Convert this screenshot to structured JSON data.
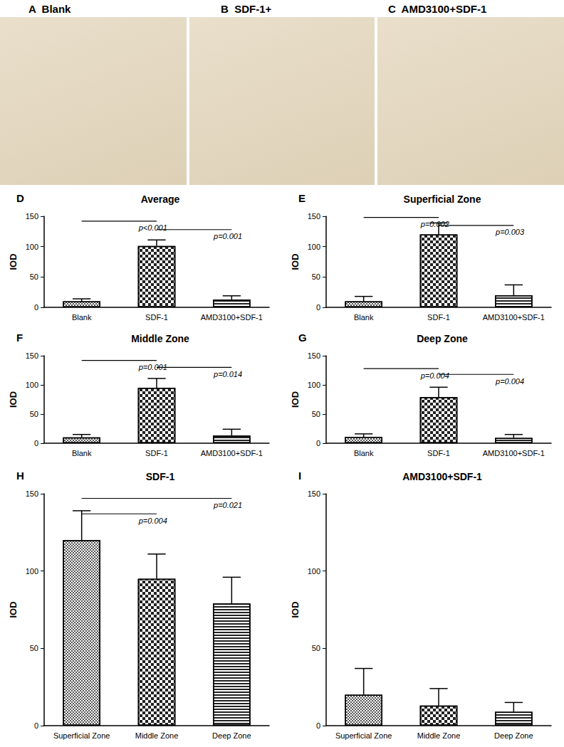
{
  "image_panels": [
    {
      "panel": "A",
      "title": "Blank"
    },
    {
      "panel": "B",
      "title": "SDF-1+"
    },
    {
      "panel": "C",
      "title": "AMD3100+SDF-1"
    }
  ],
  "chart_data": [
    {
      "type": "bar",
      "panel": "D",
      "title": "Average",
      "y_label": "IOD",
      "categories": [
        "Blank",
        "SDF-1",
        "AMD3100+SDF-1"
      ],
      "values": [
        10,
        101,
        13
      ],
      "errors": [
        4,
        10,
        6
      ],
      "color": "#ffffff",
      "ylim": [
        0,
        150
      ],
      "yticks": [
        0,
        50,
        100,
        150
      ],
      "comparisons": [
        {
          "from": "Blank",
          "to": "SDF-1",
          "y": 142,
          "label": "p<0.001"
        },
        {
          "from": "SDF-1",
          "to": "AMD3100+SDF-1",
          "y": 128,
          "label": "p=0.001"
        }
      ]
    },
    {
      "type": "bar",
      "panel": "E",
      "title": "Superficial Zone",
      "y_label": "IOD",
      "categories": [
        "Blank",
        "SDF-1",
        "AMD3100+SDF-1"
      ],
      "values": [
        10,
        120,
        20
      ],
      "errors": [
        8,
        19,
        17
      ],
      "color": "#ffffff",
      "ylim": [
        0,
        150
      ],
      "yticks": [
        0,
        50,
        100,
        150
      ],
      "comparisons": [
        {
          "from": "Blank",
          "to": "SDF-1",
          "y": 148,
          "label": "p=0.002"
        },
        {
          "from": "SDF-1",
          "to": "AMD3100+SDF-1",
          "y": 135,
          "label": "p=0.003"
        }
      ]
    },
    {
      "type": "bar",
      "panel": "F",
      "title": "Middle Zone",
      "y_label": "IOD",
      "categories": [
        "Blank",
        "SDF-1",
        "AMD3100+SDF-1"
      ],
      "values": [
        10,
        95,
        13
      ],
      "errors": [
        5,
        16,
        11
      ],
      "color": "#ffffff",
      "ylim": [
        0,
        150
      ],
      "yticks": [
        0,
        50,
        100,
        150
      ],
      "comparisons": [
        {
          "from": "Blank",
          "to": "SDF-1",
          "y": 142,
          "label": "p=0.001"
        },
        {
          "from": "SDF-1",
          "to": "AMD3100+SDF-1",
          "y": 130,
          "label": "p=0.014"
        }
      ]
    },
    {
      "type": "bar",
      "panel": "G",
      "title": "Deep Zone",
      "y_label": "IOD",
      "categories": [
        "Blank",
        "SDF-1",
        "AMD3100+SDF-1"
      ],
      "values": [
        11,
        79,
        9
      ],
      "errors": [
        5,
        17,
        6
      ],
      "color": "#ffffff",
      "ylim": [
        0,
        150
      ],
      "yticks": [
        0,
        50,
        100,
        150
      ],
      "comparisons": [
        {
          "from": "Blank",
          "to": "SDF-1",
          "y": 128,
          "label": "p=0.004"
        },
        {
          "from": "SDF-1",
          "to": "AMD3100+SDF-1",
          "y": 118,
          "label": "p=0.004"
        }
      ]
    },
    {
      "type": "bar",
      "panel": "H",
      "title": "SDF-1",
      "y_label": "IOD",
      "categories": [
        "Superficial Zone",
        "Middle Zone",
        "Deep Zone"
      ],
      "values": [
        120,
        95,
        79
      ],
      "errors": [
        19,
        16,
        17
      ],
      "color": "#ffffff",
      "ylim": [
        0,
        150
      ],
      "yticks": [
        0,
        50,
        100,
        150
      ],
      "comparisons": [
        {
          "from": "Superficial Zone",
          "to": "Middle Zone",
          "y": 137,
          "label": "p=0.004"
        },
        {
          "from": "Superficial Zone",
          "to": "Deep Zone",
          "y": 147,
          "label": "p=0.021"
        }
      ]
    },
    {
      "type": "bar",
      "panel": "I",
      "title": "AMD3100+SDF-1",
      "y_label": "IOD",
      "categories": [
        "Superficial Zone",
        "Middle Zone",
        "Deep Zone"
      ],
      "values": [
        20,
        13,
        9
      ],
      "errors": [
        17,
        11,
        6
      ],
      "color": "#ffffff",
      "ylim": [
        0,
        150
      ],
      "yticks": [
        0,
        50,
        100,
        150
      ],
      "comparisons": []
    }
  ]
}
